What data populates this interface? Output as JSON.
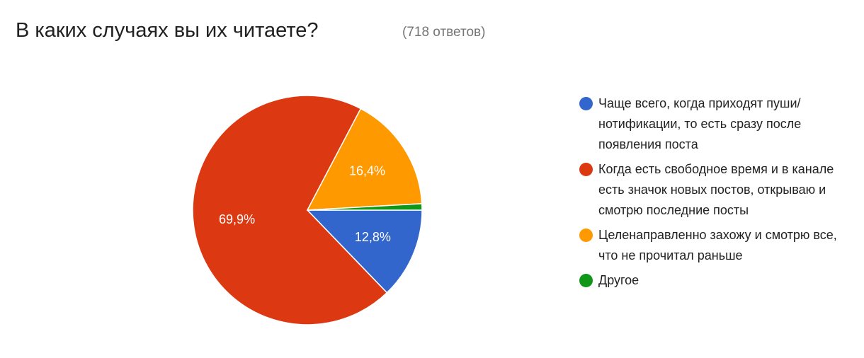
{
  "chart_data": {
    "type": "pie",
    "title": "В каких случаях вы их читаете?",
    "subtitle": "(718 ответов)",
    "categories": [
      "Чаще всего, когда приходят пуши/ нотификации, то есть сразу после появления поста",
      "Когда есть свободное время и в канале есть значок новых постов, открываю и смотрю последние посты",
      "Целенаправленно захожу и смотрю все, что не прочитал раньше",
      "Другое"
    ],
    "values": [
      12.8,
      69.9,
      16.4,
      0.9
    ],
    "value_labels": [
      "12,8%",
      "69,9%",
      "16,4%",
      null
    ],
    "colors": [
      "#3366cc",
      "#dc3912",
      "#ff9900",
      "#109618"
    ]
  }
}
